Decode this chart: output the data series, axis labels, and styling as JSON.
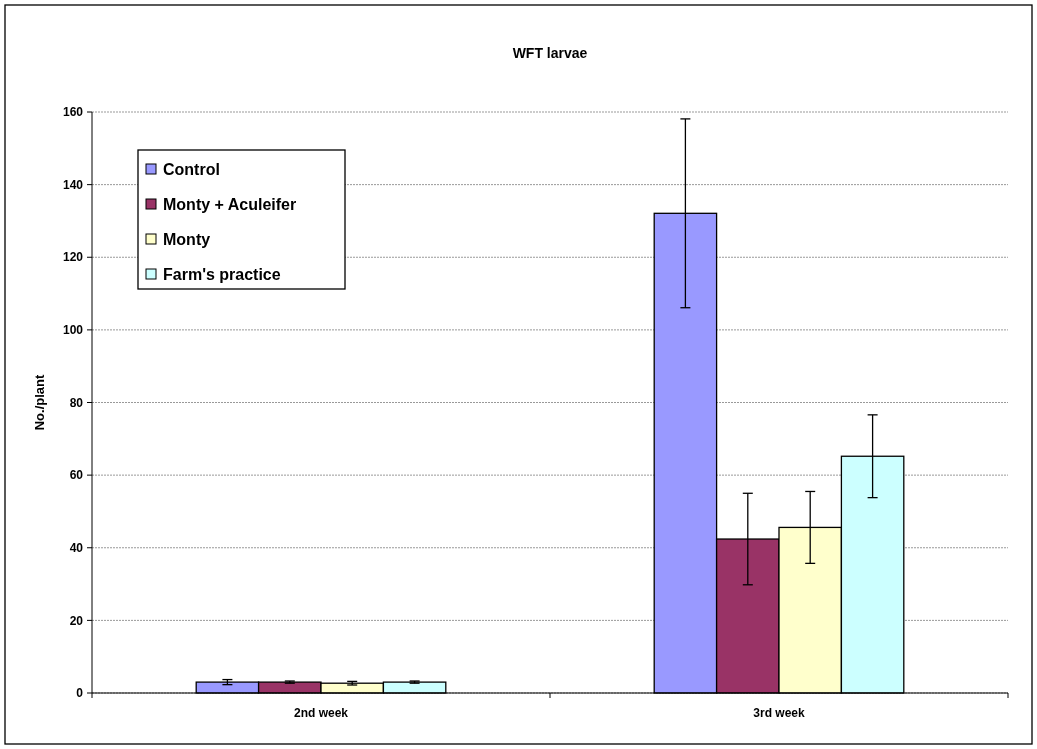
{
  "chart_data": {
    "type": "bar",
    "title": "WFT larvae",
    "ylabel": "No./plant",
    "categories": [
      "2nd week",
      "3rd week"
    ],
    "series": [
      {
        "name": "Control",
        "color": "#9999ff",
        "values": [
          3.0,
          132.1
        ],
        "errors": [
          0.7,
          26
        ]
      },
      {
        "name": "Monty + Aculeifer",
        "color": "#993366",
        "values": [
          3.0,
          42.4
        ],
        "errors": [
          0.3,
          12.6
        ]
      },
      {
        "name": "Monty",
        "color": "#ffffcc",
        "values": [
          2.7,
          45.6
        ],
        "errors": [
          0.5,
          9.9
        ]
      },
      {
        "name": "Farm's practice",
        "color": "#ccffff",
        "values": [
          3.0,
          65.2
        ],
        "errors": [
          0.3,
          11.4
        ]
      }
    ],
    "ylim": [
      0,
      160
    ],
    "yticks": [
      0,
      20,
      40,
      60,
      80,
      100,
      120,
      140,
      160
    ],
    "grid": "y",
    "legend": "top left"
  }
}
